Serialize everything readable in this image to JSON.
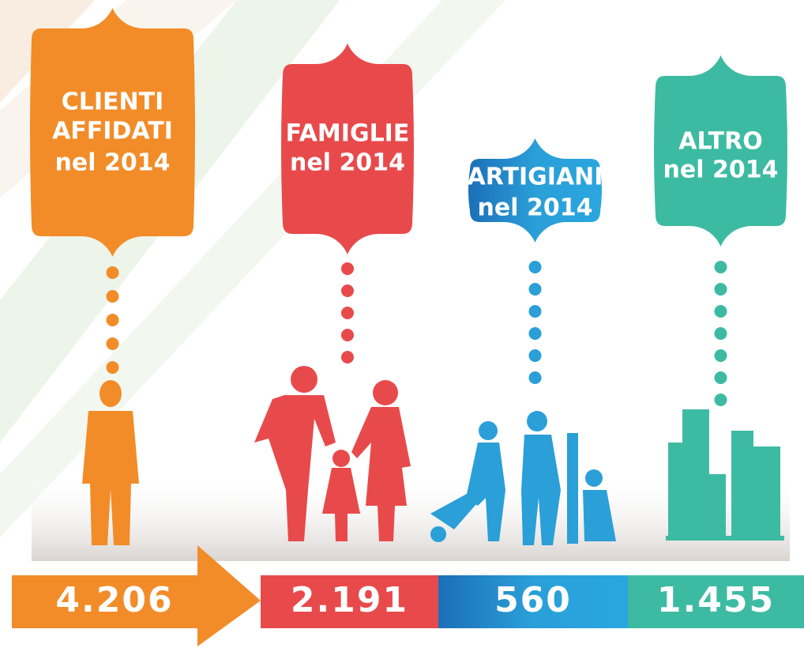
{
  "panels": [
    {
      "label_lines": [
        "CLIENTI",
        "AFFIDATI",
        "nel 2014"
      ],
      "value": "4.206"
    },
    {
      "label_lines": [
        "FAMIGLIE",
        "nel 2014"
      ],
      "value": "2.191"
    },
    {
      "label_lines": [
        "ARTIGIANI",
        "nel 2014"
      ],
      "value": "560"
    },
    {
      "label_lines": [
        "ALTRO",
        "nel 2014"
      ],
      "value": "1.455"
    }
  ]
}
